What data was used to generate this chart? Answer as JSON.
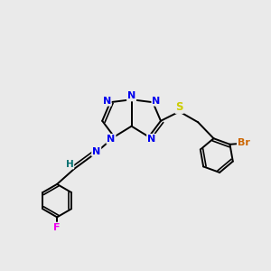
{
  "bg_color": "#eaeaea",
  "atom_colors": {
    "C": "#000000",
    "N": "#0000ee",
    "S": "#cccc00",
    "Br": "#cc6600",
    "F": "#ee00ee",
    "H": "#007070"
  },
  "bond_color": "#000000",
  "bond_lw": 1.4
}
